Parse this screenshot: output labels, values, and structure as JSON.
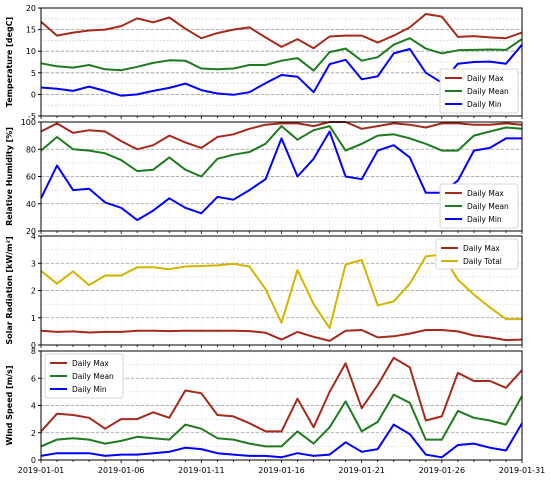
{
  "chart_data": [
    {
      "type": "line",
      "ylabel": "Temperature [degC]",
      "ylim": [
        -5,
        20
      ],
      "yticks": [
        -5,
        0,
        5,
        10,
        15,
        20
      ],
      "grid": true,
      "legend_position": "bottom-right",
      "x": [
        "2019-01-01",
        "2019-01-02",
        "2019-01-03",
        "2019-01-04",
        "2019-01-05",
        "2019-01-06",
        "2019-01-07",
        "2019-01-08",
        "2019-01-09",
        "2019-01-10",
        "2019-01-11",
        "2019-01-12",
        "2019-01-13",
        "2019-01-14",
        "2019-01-15",
        "2019-01-16",
        "2019-01-17",
        "2019-01-18",
        "2019-01-19",
        "2019-01-20",
        "2019-01-21",
        "2019-01-22",
        "2019-01-23",
        "2019-01-24",
        "2019-01-25",
        "2019-01-26",
        "2019-01-27",
        "2019-01-28",
        "2019-01-29",
        "2019-01-30",
        "2019-01-31"
      ],
      "series": [
        {
          "name": "Daily Max",
          "color": "#a52a1a",
          "values": [
            16.8,
            13.6,
            14.3,
            14.8,
            15.0,
            15.8,
            17.6,
            16.7,
            17.8,
            15.2,
            13.0,
            14.2,
            15.0,
            15.5,
            13.2,
            11.0,
            12.8,
            10.7,
            13.4,
            13.6,
            13.6,
            12.0,
            13.6,
            15.5,
            18.6,
            18.0,
            13.3,
            13.5,
            13.2,
            13.0,
            14.3
          ]
        },
        {
          "name": "Daily Mean",
          "color": "#1e7b1e",
          "values": [
            7.2,
            6.5,
            6.2,
            6.8,
            5.8,
            5.6,
            6.4,
            7.3,
            7.9,
            7.8,
            6.0,
            5.8,
            6.0,
            6.8,
            6.8,
            7.8,
            8.4,
            5.5,
            9.8,
            10.6,
            7.8,
            8.6,
            11.5,
            13.0,
            10.6,
            9.5,
            10.2,
            10.3,
            10.4,
            10.3,
            12.8
          ]
        },
        {
          "name": "Daily Min",
          "color": "#0000ff",
          "values": [
            1.6,
            1.3,
            0.8,
            1.8,
            0.8,
            -0.3,
            0.0,
            0.8,
            1.5,
            2.5,
            1.0,
            0.2,
            -0.1,
            0.5,
            2.6,
            4.5,
            4.1,
            0.5,
            7.0,
            8.0,
            3.5,
            4.2,
            9.5,
            10.5,
            5.0,
            2.7,
            7.1,
            7.5,
            7.6,
            7.1,
            11.5
          ]
        }
      ]
    },
    {
      "type": "line",
      "ylabel": "Relative Humidity [%]",
      "ylim": [
        20,
        100
      ],
      "yticks": [
        20,
        40,
        60,
        80,
        100
      ],
      "grid": true,
      "legend_position": "bottom-right",
      "x": [
        "2019-01-01",
        "2019-01-02",
        "2019-01-03",
        "2019-01-04",
        "2019-01-05",
        "2019-01-06",
        "2019-01-07",
        "2019-01-08",
        "2019-01-09",
        "2019-01-10",
        "2019-01-11",
        "2019-01-12",
        "2019-01-13",
        "2019-01-14",
        "2019-01-15",
        "2019-01-16",
        "2019-01-17",
        "2019-01-18",
        "2019-01-19",
        "2019-01-20",
        "2019-01-21",
        "2019-01-22",
        "2019-01-23",
        "2019-01-24",
        "2019-01-25",
        "2019-01-26",
        "2019-01-27",
        "2019-01-28",
        "2019-01-29",
        "2019-01-30",
        "2019-01-31"
      ],
      "series": [
        {
          "name": "Daily Max",
          "color": "#a52a1a",
          "values": [
            93,
            99,
            92,
            94,
            93,
            86,
            80,
            83,
            90,
            85,
            81,
            89,
            91,
            95,
            98,
            99,
            99,
            97,
            100,
            100,
            95,
            97,
            99,
            98,
            96,
            99,
            99,
            98,
            98,
            99,
            98
          ]
        },
        {
          "name": "Daily Mean",
          "color": "#1e7b1e",
          "values": [
            79,
            89,
            80,
            79,
            77,
            72,
            64,
            65,
            74,
            65,
            60,
            73,
            76,
            78,
            84,
            97,
            87,
            94,
            97,
            79,
            84,
            90,
            91,
            88,
            84,
            79,
            79,
            90,
            93,
            96,
            95
          ]
        },
        {
          "name": "Daily Min",
          "color": "#0000ff",
          "values": [
            44,
            68,
            50,
            51,
            41,
            37,
            28,
            35,
            44,
            37,
            33,
            45,
            43,
            50,
            58,
            88,
            60,
            73,
            93,
            60,
            58,
            79,
            83,
            74,
            48,
            48,
            57,
            79,
            81,
            88,
            88
          ]
        }
      ]
    },
    {
      "type": "line",
      "ylabel": "Solar Radiation [kW/m²]",
      "ylim": [
        0,
        4
      ],
      "yticks": [
        0,
        1,
        2,
        3,
        4
      ],
      "grid": true,
      "legend_position": "top-right",
      "x": [
        "2019-01-01",
        "2019-01-02",
        "2019-01-03",
        "2019-01-04",
        "2019-01-05",
        "2019-01-06",
        "2019-01-07",
        "2019-01-08",
        "2019-01-09",
        "2019-01-10",
        "2019-01-11",
        "2019-01-12",
        "2019-01-13",
        "2019-01-14",
        "2019-01-15",
        "2019-01-16",
        "2019-01-17",
        "2019-01-18",
        "2019-01-19",
        "2019-01-20",
        "2019-01-21",
        "2019-01-22",
        "2019-01-23",
        "2019-01-24",
        "2019-01-25",
        "2019-01-26",
        "2019-01-27",
        "2019-01-28",
        "2019-01-29",
        "2019-01-30",
        "2019-01-31"
      ],
      "series": [
        {
          "name": "Daily Max",
          "color": "#a52a1a",
          "values": [
            0.52,
            0.48,
            0.5,
            0.46,
            0.48,
            0.48,
            0.52,
            0.52,
            0.51,
            0.52,
            0.52,
            0.52,
            0.52,
            0.51,
            0.45,
            0.2,
            0.48,
            0.3,
            0.15,
            0.52,
            0.55,
            0.28,
            0.32,
            0.42,
            0.55,
            0.55,
            0.5,
            0.35,
            0.28,
            0.18,
            0.2
          ]
        },
        {
          "name": "Daily Total",
          "color": "#d4b400",
          "values": [
            2.72,
            2.25,
            2.7,
            2.2,
            2.55,
            2.55,
            2.85,
            2.85,
            2.78,
            2.88,
            2.9,
            2.92,
            2.98,
            2.88,
            2.05,
            0.82,
            2.75,
            1.5,
            0.62,
            2.95,
            3.12,
            1.45,
            1.6,
            2.25,
            3.25,
            3.32,
            2.4,
            1.85,
            1.38,
            0.95,
            0.95
          ]
        }
      ]
    },
    {
      "type": "line",
      "ylabel": "Wind Speed [m/s]",
      "ylim": [
        0,
        8
      ],
      "yticks": [
        0,
        2,
        4,
        6,
        8
      ],
      "grid": true,
      "legend_position": "top-left",
      "x": [
        "2019-01-01",
        "2019-01-02",
        "2019-01-03",
        "2019-01-04",
        "2019-01-05",
        "2019-01-06",
        "2019-01-07",
        "2019-01-08",
        "2019-01-09",
        "2019-01-10",
        "2019-01-11",
        "2019-01-12",
        "2019-01-13",
        "2019-01-14",
        "2019-01-15",
        "2019-01-16",
        "2019-01-17",
        "2019-01-18",
        "2019-01-19",
        "2019-01-20",
        "2019-01-21",
        "2019-01-22",
        "2019-01-23",
        "2019-01-24",
        "2019-01-25",
        "2019-01-26",
        "2019-01-27",
        "2019-01-28",
        "2019-01-29",
        "2019-01-30",
        "2019-01-31"
      ],
      "series": [
        {
          "name": "Daily Max",
          "color": "#a52a1a",
          "values": [
            2.1,
            3.4,
            3.3,
            3.1,
            2.3,
            3.0,
            3.0,
            3.5,
            3.1,
            5.1,
            4.9,
            3.3,
            3.2,
            2.7,
            2.1,
            2.1,
            4.5,
            2.4,
            5.0,
            7.1,
            3.8,
            5.5,
            7.5,
            6.8,
            2.9,
            3.2,
            6.4,
            5.8,
            5.8,
            5.3,
            6.6
          ]
        },
        {
          "name": "Daily Mean",
          "color": "#1e7b1e",
          "values": [
            1.0,
            1.5,
            1.6,
            1.5,
            1.2,
            1.4,
            1.7,
            1.6,
            1.5,
            2.6,
            2.3,
            1.6,
            1.5,
            1.2,
            1.0,
            1.0,
            2.1,
            1.2,
            2.4,
            4.3,
            2.1,
            2.8,
            4.8,
            4.2,
            1.5,
            1.5,
            3.6,
            3.1,
            2.9,
            2.6,
            4.7
          ]
        },
        {
          "name": "Daily Min",
          "color": "#0000ff",
          "values": [
            0.3,
            0.5,
            0.5,
            0.5,
            0.3,
            0.4,
            0.4,
            0.5,
            0.6,
            0.9,
            0.8,
            0.5,
            0.4,
            0.3,
            0.3,
            0.2,
            0.5,
            0.3,
            0.4,
            1.3,
            0.6,
            0.8,
            2.6,
            1.9,
            0.4,
            0.2,
            1.1,
            1.2,
            0.9,
            0.7,
            2.7
          ]
        }
      ]
    }
  ],
  "x_tick_labels": [
    "2019-01-01",
    "2019-01-06",
    "2019-01-11",
    "2019-01-16",
    "2019-01-21",
    "2019-01-26",
    "2019-01-31"
  ]
}
